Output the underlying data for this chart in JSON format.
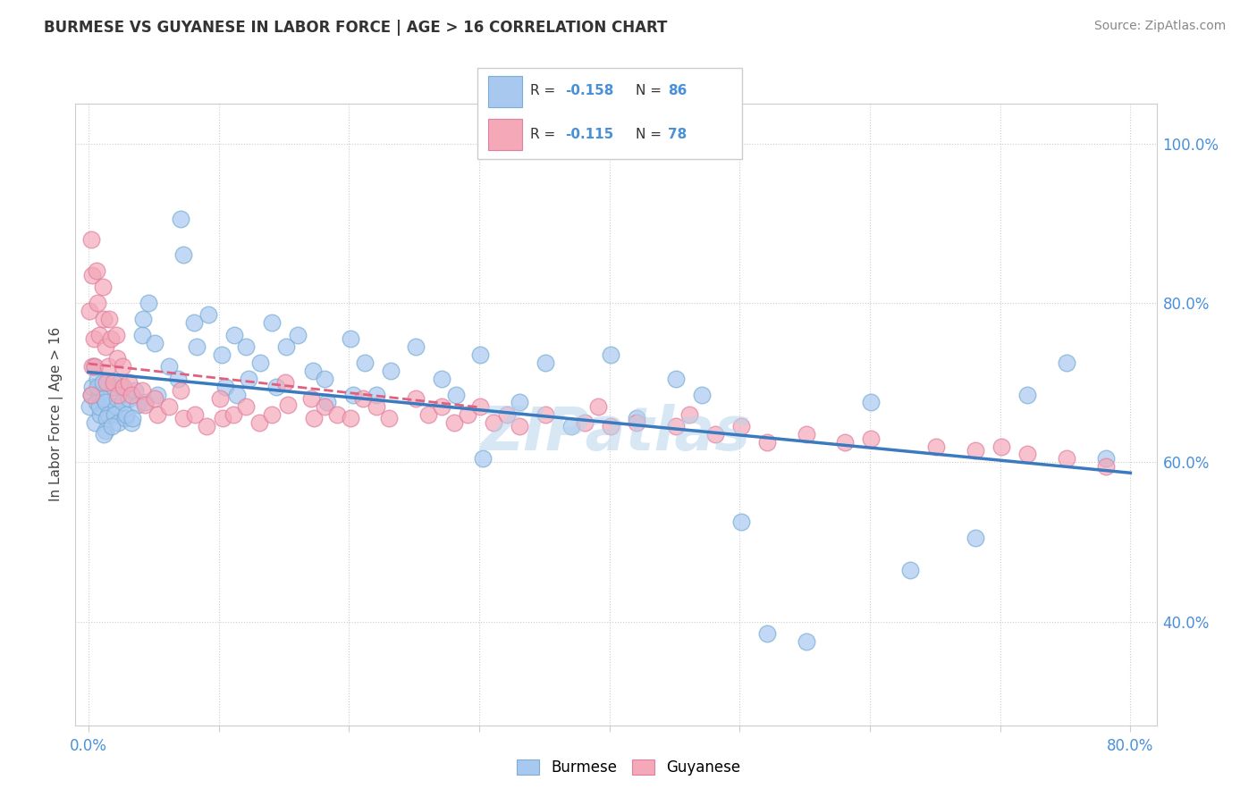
{
  "title": "BURMESE VS GUYANESE IN LABOR FORCE | AGE > 16 CORRELATION CHART",
  "source": "Source: ZipAtlas.com",
  "ylabel": "In Labor Force | Age > 16",
  "xlim": [
    -0.01,
    0.82
  ],
  "ylim": [
    0.27,
    1.05
  ],
  "xtick_positions": [
    0.0,
    0.1,
    0.2,
    0.3,
    0.4,
    0.5,
    0.6,
    0.7,
    0.8
  ],
  "xtick_labels": [
    "0.0%",
    "",
    "",
    "",
    "",
    "",
    "",
    "",
    "80.0%"
  ],
  "ytick_positions": [
    0.4,
    0.6,
    0.8,
    1.0
  ],
  "ytick_labels": [
    "40.0%",
    "60.0%",
    "80.0%",
    "100.0%"
  ],
  "burmese_color": "#a8c8f0",
  "guyanese_color": "#f4a8b8",
  "burmese_edge_color": "#7aaed4",
  "guyanese_edge_color": "#e080a0",
  "burmese_line_color": "#3a7abf",
  "guyanese_line_color": "#e06080",
  "R_burmese": -0.158,
  "N_burmese": 86,
  "R_guyanese": -0.115,
  "N_guyanese": 78,
  "watermark": "ZIPatlas",
  "burmese_x": [
    0.002,
    0.003,
    0.004,
    0.001,
    0.005,
    0.008,
    0.007,
    0.006,
    0.009,
    0.008,
    0.007,
    0.012,
    0.013,
    0.011,
    0.015,
    0.014,
    0.013,
    0.012,
    0.021,
    0.022,
    0.02,
    0.023,
    0.019,
    0.024,
    0.018,
    0.028,
    0.026,
    0.031,
    0.033,
    0.029,
    0.036,
    0.038,
    0.034,
    0.042,
    0.041,
    0.043,
    0.046,
    0.051,
    0.053,
    0.062,
    0.071,
    0.073,
    0.069,
    0.081,
    0.083,
    0.092,
    0.102,
    0.105,
    0.112,
    0.114,
    0.121,
    0.123,
    0.132,
    0.141,
    0.144,
    0.152,
    0.161,
    0.172,
    0.181,
    0.183,
    0.201,
    0.203,
    0.212,
    0.221,
    0.232,
    0.251,
    0.271,
    0.282,
    0.301,
    0.303,
    0.331,
    0.351,
    0.371,
    0.401,
    0.421,
    0.451,
    0.471,
    0.501,
    0.521,
    0.551,
    0.601,
    0.631,
    0.681,
    0.721,
    0.751,
    0.781
  ],
  "burmese_y": [
    0.685,
    0.695,
    0.72,
    0.67,
    0.65,
    0.685,
    0.705,
    0.675,
    0.66,
    0.67,
    0.695,
    0.68,
    0.675,
    0.7,
    0.66,
    0.655,
    0.64,
    0.635,
    0.67,
    0.68,
    0.66,
    0.65,
    0.695,
    0.7,
    0.645,
    0.655,
    0.675,
    0.68,
    0.65,
    0.66,
    0.69,
    0.672,
    0.655,
    0.78,
    0.76,
    0.675,
    0.8,
    0.75,
    0.685,
    0.72,
    0.905,
    0.86,
    0.705,
    0.775,
    0.745,
    0.785,
    0.735,
    0.695,
    0.76,
    0.685,
    0.745,
    0.705,
    0.725,
    0.775,
    0.695,
    0.745,
    0.76,
    0.715,
    0.705,
    0.675,
    0.755,
    0.685,
    0.725,
    0.685,
    0.715,
    0.745,
    0.705,
    0.685,
    0.735,
    0.605,
    0.675,
    0.725,
    0.645,
    0.735,
    0.655,
    0.705,
    0.685,
    0.525,
    0.385,
    0.375,
    0.675,
    0.465,
    0.505,
    0.685,
    0.725,
    0.605
  ],
  "guyanese_x": [
    0.002,
    0.003,
    0.001,
    0.004,
    0.003,
    0.002,
    0.006,
    0.007,
    0.008,
    0.005,
    0.011,
    0.012,
    0.013,
    0.014,
    0.016,
    0.017,
    0.015,
    0.021,
    0.022,
    0.019,
    0.023,
    0.026,
    0.027,
    0.031,
    0.033,
    0.041,
    0.043,
    0.051,
    0.053,
    0.062,
    0.071,
    0.073,
    0.082,
    0.091,
    0.101,
    0.103,
    0.111,
    0.121,
    0.131,
    0.141,
    0.151,
    0.153,
    0.171,
    0.173,
    0.181,
    0.191,
    0.201,
    0.211,
    0.221,
    0.231,
    0.251,
    0.261,
    0.271,
    0.281,
    0.291,
    0.301,
    0.311,
    0.321,
    0.331,
    0.351,
    0.381,
    0.391,
    0.401,
    0.421,
    0.451,
    0.461,
    0.481,
    0.501,
    0.521,
    0.551,
    0.581,
    0.601,
    0.651,
    0.681,
    0.701,
    0.721,
    0.751,
    0.781
  ],
  "guyanese_y": [
    0.88,
    0.835,
    0.79,
    0.755,
    0.72,
    0.685,
    0.84,
    0.8,
    0.76,
    0.72,
    0.82,
    0.78,
    0.745,
    0.7,
    0.78,
    0.755,
    0.72,
    0.76,
    0.73,
    0.7,
    0.685,
    0.72,
    0.695,
    0.7,
    0.685,
    0.69,
    0.672,
    0.68,
    0.66,
    0.67,
    0.69,
    0.655,
    0.66,
    0.645,
    0.68,
    0.655,
    0.66,
    0.67,
    0.65,
    0.66,
    0.7,
    0.672,
    0.68,
    0.655,
    0.67,
    0.66,
    0.655,
    0.68,
    0.67,
    0.655,
    0.68,
    0.66,
    0.67,
    0.65,
    0.66,
    0.67,
    0.65,
    0.66,
    0.645,
    0.66,
    0.65,
    0.67,
    0.645,
    0.65,
    0.645,
    0.66,
    0.635,
    0.645,
    0.625,
    0.635,
    0.625,
    0.63,
    0.62,
    0.615,
    0.62,
    0.61,
    0.605,
    0.595
  ]
}
